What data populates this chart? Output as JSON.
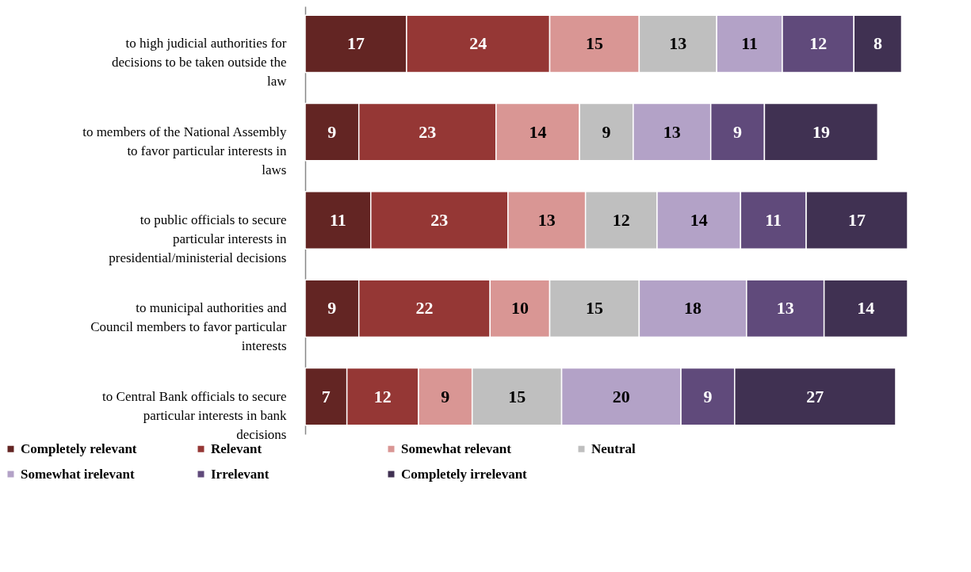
{
  "chart_data": {
    "type": "bar",
    "orientation": "horizontal",
    "stacked": true,
    "data_labels": true,
    "legend": "bottom",
    "grid": false,
    "tick_labels": "y",
    "xlim": [
      0,
      101
    ],
    "categories": [
      "to high judicial authorities for decisions to be taken outside the law",
      "to members of the National Assembly to favor particular interests in laws",
      "to public officials to secure particular interests in presidential/ministerial decisions",
      "to municipal authorities  and Council members to favor particular interests",
      "to Central Bank officials to secure particular interests in bank decisions"
    ],
    "series": [
      {
        "name": "Completely relevant",
        "color": "#632523",
        "values": [
          17,
          9,
          11,
          9,
          7
        ]
      },
      {
        "name": "Relevant",
        "color": "#953735",
        "values": [
          24,
          23,
          23,
          22,
          12
        ]
      },
      {
        "name": "Somewhat relevant",
        "color": "#d99694",
        "values": [
          15,
          14,
          13,
          10,
          9
        ]
      },
      {
        "name": "Neutral",
        "color": "#bfbfbf",
        "values": [
          13,
          9,
          12,
          15,
          15
        ]
      },
      {
        "name": "Somewhat irelevant",
        "color": "#b3a2c7",
        "values": [
          11,
          13,
          14,
          18,
          20
        ]
      },
      {
        "name": "Irrelevant",
        "color": "#604a7b",
        "values": [
          12,
          9,
          11,
          13,
          9
        ]
      },
      {
        "name": "Completely irrelevant",
        "color": "#403152",
        "values": [
          8,
          19,
          17,
          14,
          27
        ]
      }
    ]
  }
}
